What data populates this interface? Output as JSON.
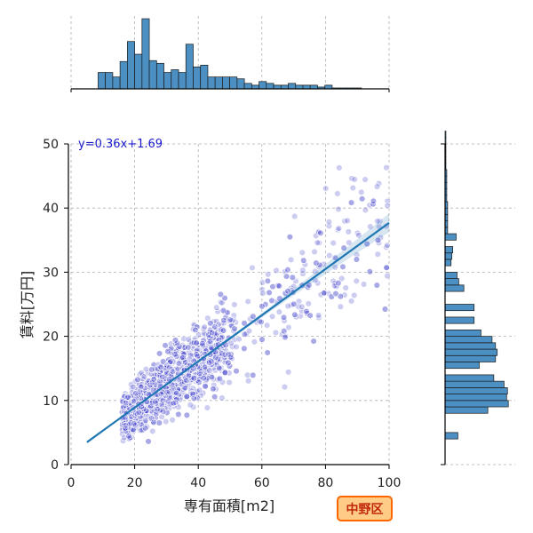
{
  "chart_data": {
    "type": "scatter",
    "xlabel": "専有面積[m2]",
    "ylabel": "賃料[万円]",
    "xlim": [
      0,
      100
    ],
    "ylim": [
      0,
      50
    ],
    "xticks": [
      0,
      20,
      40,
      60,
      80,
      100
    ],
    "yticks": [
      0,
      10,
      20,
      30,
      40,
      50
    ],
    "grid": true,
    "regression": {
      "slope": 0.36,
      "intercept": 1.69,
      "x_range": [
        5,
        100
      ],
      "label": "y=0.36x+1.69"
    },
    "annotation": "中野区",
    "colors": {
      "points": "#4a4ad0",
      "line": "#1f77b4",
      "bars": "#4c8fc2",
      "badge_fill": "#ffcc88",
      "badge_stroke": "#ff6600",
      "equation": "#1a1acc"
    },
    "x_hist": {
      "bin_edges_start": 8.5,
      "bin_width": 2.3,
      "heights": [
        18,
        18,
        13,
        30,
        52,
        38,
        77,
        31,
        28,
        18,
        21,
        18,
        49,
        24,
        26,
        13,
        13,
        13,
        13,
        11,
        6,
        4,
        8,
        6,
        4,
        4,
        6,
        4,
        4,
        4,
        2,
        4,
        1,
        1,
        1,
        1
      ],
      "max_height": 80
    },
    "y_hist": {
      "bin_start": 4.0,
      "bin_width": 1.0,
      "widths": [
        15,
        0,
        0,
        0,
        50,
        74,
        72,
        73,
        69,
        57,
        0,
        40,
        59,
        61,
        59,
        55,
        42,
        0,
        34,
        0,
        34,
        0,
        0,
        22,
        16,
        14,
        0,
        7,
        8,
        9,
        0,
        13,
        3,
        3,
        3,
        3,
        3,
        2,
        2,
        2,
        2,
        2,
        1,
        1,
        1,
        1,
        1,
        1
      ],
      "max_width": 80
    }
  }
}
